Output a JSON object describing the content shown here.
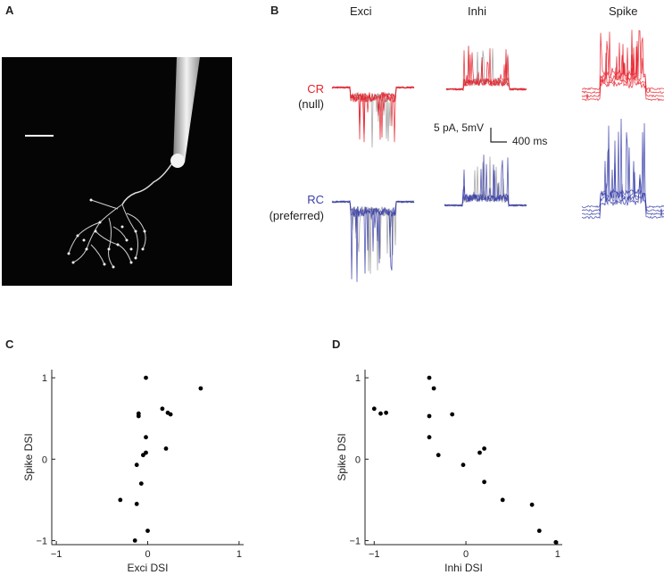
{
  "panels": {
    "A": "A",
    "B": "B",
    "C": "C",
    "D": "D"
  },
  "traces": {
    "columns": [
      "Exci",
      "Inhi",
      "Spike"
    ],
    "rows": [
      {
        "label": "CR",
        "sublabel": "(null)",
        "color": "#e8212b"
      },
      {
        "label": "RC",
        "sublabel": "(preferred)",
        "color": "#3a3fa8"
      }
    ],
    "scale_text": "5 pA, 5mV",
    "scale_time": "400 ms"
  },
  "colors": {
    "null": "#e8212b",
    "preferred": "#3a3fa8",
    "gray_trace": "#9a9a9a",
    "dot": "#000000"
  },
  "chart_data": [
    {
      "type": "scatter",
      "panel": "C",
      "xlabel": "Exci DSI",
      "ylabel": "Spike DSI",
      "xlim": [
        -1.05,
        1.05
      ],
      "ylim": [
        -1.05,
        1.1
      ],
      "xticks": [
        -1,
        0,
        1
      ],
      "yticks": [
        -1,
        0,
        1
      ],
      "x": [
        -0.02,
        -0.1,
        -0.1,
        0.16,
        0.22,
        0.25,
        0.58,
        -0.02,
        0.2,
        -0.02,
        -0.12,
        -0.05,
        -0.07,
        -0.3,
        -0.12,
        0.0,
        -0.14
      ],
      "y": [
        1.0,
        0.56,
        0.53,
        0.62,
        0.57,
        0.55,
        0.87,
        0.27,
        0.13,
        0.08,
        -0.07,
        0.05,
        -0.3,
        -0.5,
        -0.55,
        -0.88,
        -1.0
      ]
    },
    {
      "type": "scatter",
      "panel": "D",
      "xlabel": "Inhi DSI",
      "ylabel": "Spike DSI",
      "xlim": [
        -1.1,
        1.05
      ],
      "ylim": [
        -1.05,
        1.1
      ],
      "xticks": [
        -1,
        0,
        1
      ],
      "yticks": [
        -1,
        0,
        1
      ],
      "x": [
        -1.0,
        -0.93,
        -0.87,
        -0.4,
        -0.35,
        -0.4,
        -0.15,
        -0.4,
        -0.3,
        -0.03,
        0.15,
        0.2,
        0.2,
        0.4,
        0.72,
        0.8,
        0.98
      ],
      "y": [
        0.62,
        0.56,
        0.57,
        1.0,
        0.87,
        0.53,
        0.55,
        0.27,
        0.05,
        -0.07,
        0.08,
        0.13,
        -0.28,
        -0.5,
        -0.56,
        -0.88,
        -1.02
      ]
    }
  ]
}
